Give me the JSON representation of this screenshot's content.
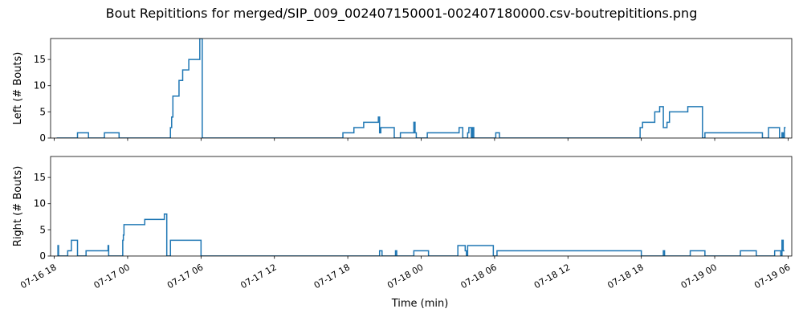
{
  "figure": {
    "title": "Bout Repititions for merged/SIP_009_002407150001-002407180000.csv-boutrepititions.png",
    "xlabel": "Time (min)"
  },
  "chart_data": [
    {
      "type": "line",
      "ylabel": "Left (# Bouts)",
      "xlim": [
        -0.3,
        60.3
      ],
      "ylim": [
        0,
        19
      ],
      "y_ticks": [
        0,
        5,
        10,
        15
      ],
      "x_ticks": [
        {
          "hours": 0,
          "label": "07-16 18"
        },
        {
          "hours": 6,
          "label": "07-17 00"
        },
        {
          "hours": 12,
          "label": "07-17 06"
        },
        {
          "hours": 18,
          "label": "07-17 12"
        },
        {
          "hours": 24,
          "label": "07-17 18"
        },
        {
          "hours": 30,
          "label": "07-18 00"
        },
        {
          "hours": 36,
          "label": "07-18 06"
        },
        {
          "hours": 42,
          "label": "07-18 12"
        },
        {
          "hours": 48,
          "label": "07-18 18"
        },
        {
          "hours": 54,
          "label": "07-19 00"
        },
        {
          "hours": 60,
          "label": "07-19 06"
        }
      ],
      "show_x_tick_labels": false,
      "color": "#1f77b4",
      "series": [
        {
          "x": [
            0.2,
            1.0,
            1.0,
            1.9,
            1.9,
            2.8,
            2.8,
            4.1,
            4.1,
            5.3,
            5.3,
            9.5,
            9.5,
            9.6,
            9.6,
            9.7,
            9.7,
            10.2,
            10.2,
            10.5,
            10.5,
            11.0,
            11.0,
            11.9,
            11.9,
            12.1,
            12.1,
            23.6,
            23.6,
            24.5,
            24.5,
            25.3,
            25.3,
            26.5,
            26.5,
            26.6,
            26.6,
            26.7,
            26.7,
            27.8,
            27.8,
            28.3,
            28.3,
            29.4,
            29.4,
            29.5,
            29.5,
            29.6,
            29.6,
            30.5,
            30.5,
            33.1,
            33.1,
            33.4,
            33.4,
            33.8,
            33.8,
            33.9,
            33.9,
            34.1,
            34.1,
            34.2,
            34.2,
            34.3,
            34.3,
            36.1,
            36.1,
            36.4,
            36.4,
            41.8,
            41.8,
            47.9,
            47.9,
            48.1,
            48.1,
            49.1,
            49.1,
            49.5,
            49.5,
            49.8,
            49.8,
            50.1,
            50.1,
            50.3,
            50.3,
            51.8,
            51.8,
            53.0,
            53.0,
            53.2,
            53.2,
            55.1,
            55.1,
            57.9,
            57.9,
            58.4,
            58.4,
            59.3,
            59.3,
            59.5,
            59.5,
            59.6,
            59.6,
            59.7,
            59.7,
            59.8
          ],
          "y": [
            0,
            0,
            0,
            0,
            1,
            1,
            0,
            0,
            1,
            1,
            0,
            0,
            2,
            2,
            4,
            4,
            8,
            8,
            11,
            11,
            13,
            13,
            15,
            15,
            19,
            19,
            0,
            0,
            1,
            1,
            2,
            2,
            3,
            3,
            4,
            4,
            1,
            1,
            2,
            2,
            0,
            0,
            1,
            1,
            3,
            3,
            1,
            1,
            0,
            0,
            1,
            1,
            2,
            2,
            0,
            0,
            1,
            1,
            2,
            2,
            0,
            0,
            2,
            2,
            0,
            0,
            1,
            1,
            0,
            0,
            0,
            0,
            2,
            2,
            3,
            3,
            5,
            5,
            6,
            6,
            2,
            2,
            3,
            3,
            5,
            5,
            6,
            6,
            0,
            0,
            1,
            1,
            1,
            1,
            0,
            0,
            2,
            2,
            0,
            0,
            1,
            1,
            0,
            0,
            2,
            2
          ]
        }
      ]
    },
    {
      "type": "line",
      "ylabel": "Right (# Bouts)",
      "xlim": [
        -0.3,
        60.3
      ],
      "ylim": [
        0,
        19
      ],
      "y_ticks": [
        0,
        5,
        10,
        15
      ],
      "x_ticks": [
        {
          "hours": 0,
          "label": "07-16 18"
        },
        {
          "hours": 6,
          "label": "07-17 00"
        },
        {
          "hours": 12,
          "label": "07-17 06"
        },
        {
          "hours": 18,
          "label": "07-17 12"
        },
        {
          "hours": 24,
          "label": "07-17 18"
        },
        {
          "hours": 30,
          "label": "07-18 00"
        },
        {
          "hours": 36,
          "label": "07-18 06"
        },
        {
          "hours": 42,
          "label": "07-18 12"
        },
        {
          "hours": 48,
          "label": "07-18 18"
        },
        {
          "hours": 54,
          "label": "07-19 00"
        },
        {
          "hours": 60,
          "label": "07-19 06"
        }
      ],
      "show_x_tick_labels": true,
      "color": "#1f77b4",
      "series": [
        {
          "x": [
            0.3,
            0.3,
            0.35,
            0.35,
            1.1,
            1.1,
            1.4,
            1.4,
            1.9,
            1.9,
            2.6,
            2.6,
            4.4,
            4.4,
            4.45,
            4.45,
            5.6,
            5.6,
            5.65,
            5.65,
            5.7,
            5.7,
            7.4,
            7.4,
            9.0,
            9.0,
            9.2,
            9.2,
            9.5,
            9.5,
            12.0,
            12.0,
            12.1,
            12.1,
            26.6,
            26.6,
            26.8,
            26.8,
            27.9,
            27.9,
            28.0,
            28.0,
            29.4,
            29.4,
            30.6,
            30.6,
            33.0,
            33.0,
            33.6,
            33.6,
            33.7,
            33.7,
            33.8,
            33.8,
            35.9,
            35.9,
            36.2,
            36.2,
            48.0,
            48.0,
            49.8,
            49.8,
            49.9,
            49.9,
            52.0,
            52.0,
            53.2,
            53.2,
            56.1,
            56.1,
            57.4,
            57.4,
            58.9,
            58.9,
            59.4,
            59.4,
            59.5,
            59.5,
            59.6,
            59.6,
            59.7
          ],
          "y": [
            0,
            2,
            2,
            0,
            0,
            1,
            1,
            3,
            3,
            0,
            0,
            1,
            1,
            2,
            2,
            0,
            0,
            3,
            3,
            4,
            4,
            6,
            6,
            7,
            7,
            8,
            8,
            0,
            0,
            3,
            3,
            0,
            0,
            0,
            0,
            1,
            1,
            0,
            0,
            1,
            1,
            0,
            0,
            1,
            1,
            0,
            0,
            2,
            2,
            1,
            1,
            0,
            0,
            2,
            2,
            0,
            0,
            1,
            1,
            0,
            0,
            1,
            1,
            0,
            0,
            1,
            1,
            0,
            0,
            1,
            1,
            0,
            0,
            1,
            1,
            0,
            0,
            3,
            3,
            1,
            1
          ]
        }
      ]
    }
  ]
}
